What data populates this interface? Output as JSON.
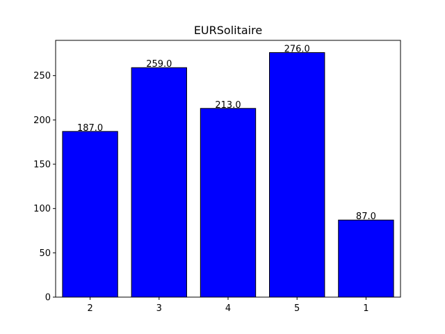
{
  "chart_data": {
    "type": "bar",
    "title": "EURSolitaire",
    "xlabel": "",
    "ylabel": "",
    "categories": [
      "2",
      "3",
      "4",
      "5",
      "1"
    ],
    "values": [
      187.0,
      259.0,
      213.0,
      276.0,
      87.0
    ],
    "data_labels": [
      "187.0",
      "259.0",
      "213.0",
      "276.0",
      "87.0"
    ],
    "ylim": [
      0,
      289.8
    ],
    "yticks": [
      0,
      50,
      100,
      150,
      200,
      250
    ],
    "grid": false,
    "legend": "none",
    "bar_color": "#0000ff",
    "edge_color": "#000000"
  }
}
